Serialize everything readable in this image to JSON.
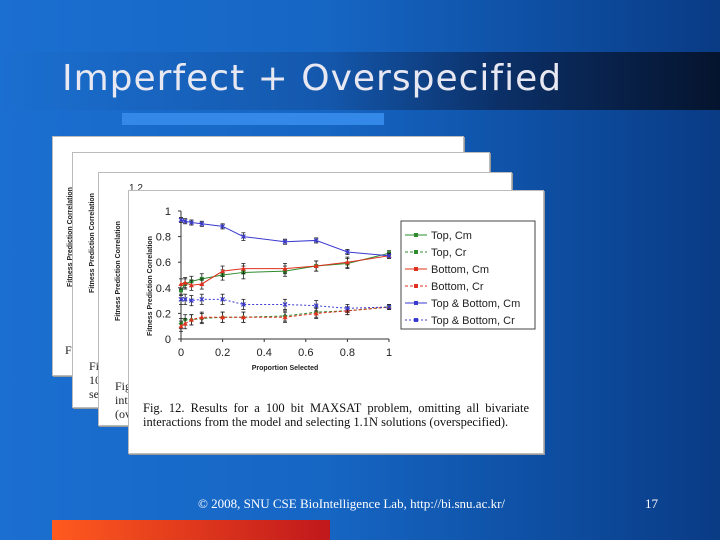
{
  "slide": {
    "title": "Imperfect + Overspecified",
    "footer": "© 2008, SNU CSE BioIntelligence Lab, http://bi.snu.ac.kr/",
    "page_number": "17"
  },
  "stack": {
    "ylabel": "Fitness Prediction Correlation",
    "frag_f1": "Fi",
    "frag_f2": "Fi",
    "frag_10": "10",
    "frag_se": "se",
    "frag_fig": "Fig",
    "frag_in": "int",
    "frag_ov": "(ov",
    "frag_12": "1.2"
  },
  "chart_data": {
    "type": "line",
    "ylabel": "Fitness Prediction Correlation",
    "xlabel": "Proportion Selected",
    "xlim": [
      0,
      1
    ],
    "ylim": [
      0,
      1
    ],
    "x_ticks": [
      "0",
      "0.2",
      "0.4",
      "0.6",
      "0.8",
      "1"
    ],
    "y_ticks": [
      "0",
      "0.2",
      "0.4",
      "0.6",
      "0.8",
      "1"
    ],
    "legend_position": "right",
    "series": [
      {
        "name": "Top, Cm",
        "color": "#2e8b2e",
        "dash": "",
        "marker": "square",
        "x": [
          0,
          0.02,
          0.05,
          0.1,
          0.2,
          0.3,
          0.5,
          0.65,
          0.8,
          1.0
        ],
        "y": [
          0.38,
          0.43,
          0.45,
          0.47,
          0.5,
          0.52,
          0.53,
          0.57,
          0.59,
          0.67
        ],
        "err": [
          0.04,
          0.04,
          0.04,
          0.04,
          0.04,
          0.05,
          0.04,
          0.04,
          0.04,
          0.02
        ]
      },
      {
        "name": "Top, Cr",
        "color": "#2e8b2e",
        "dash": "3,2",
        "marker": "diamond",
        "x": [
          0,
          0.02,
          0.05,
          0.1,
          0.2,
          0.3,
          0.5,
          0.65,
          0.8,
          1.0
        ],
        "y": [
          0.12,
          0.15,
          0.15,
          0.16,
          0.17,
          0.17,
          0.18,
          0.21,
          0.22,
          0.25
        ],
        "err": [
          0.04,
          0.04,
          0.04,
          0.04,
          0.04,
          0.04,
          0.04,
          0.04,
          0.03,
          0.02
        ]
      },
      {
        "name": "Bottom, Cm",
        "color": "#e0301e",
        "dash": "",
        "marker": "triangle",
        "x": [
          0,
          0.02,
          0.05,
          0.1,
          0.2,
          0.3,
          0.5,
          0.65,
          0.8,
          1.0
        ],
        "y": [
          0.43,
          0.44,
          0.42,
          0.43,
          0.53,
          0.55,
          0.55,
          0.57,
          0.6,
          0.65
        ],
        "err": [
          0.04,
          0.04,
          0.04,
          0.04,
          0.04,
          0.04,
          0.04,
          0.04,
          0.04,
          0.02
        ]
      },
      {
        "name": "Bottom, Cr",
        "color": "#e0301e",
        "dash": "3,2",
        "marker": "triangle",
        "x": [
          0,
          0.02,
          0.05,
          0.1,
          0.2,
          0.3,
          0.5,
          0.65,
          0.8,
          1.0
        ],
        "y": [
          0.1,
          0.12,
          0.15,
          0.17,
          0.17,
          0.17,
          0.17,
          0.2,
          0.22,
          0.25
        ],
        "err": [
          0.04,
          0.04,
          0.04,
          0.04,
          0.04,
          0.04,
          0.04,
          0.04,
          0.03,
          0.02
        ]
      },
      {
        "name": "Top & Bottom, Cm",
        "color": "#3a3ad0",
        "dash": "",
        "marker": "x",
        "x": [
          0,
          0.02,
          0.05,
          0.1,
          0.2,
          0.3,
          0.5,
          0.65,
          0.8,
          1.0
        ],
        "y": [
          0.93,
          0.92,
          0.91,
          0.9,
          0.88,
          0.8,
          0.76,
          0.77,
          0.68,
          0.65
        ],
        "err": [
          0.02,
          0.02,
          0.02,
          0.02,
          0.02,
          0.03,
          0.02,
          0.02,
          0.02,
          0.02
        ]
      },
      {
        "name": "Top & Bottom, Cr",
        "color": "#3a3ad0",
        "dash": "2,2",
        "marker": "x",
        "x": [
          0,
          0.02,
          0.05,
          0.1,
          0.2,
          0.3,
          0.5,
          0.65,
          0.8,
          1.0
        ],
        "y": [
          0.31,
          0.31,
          0.3,
          0.31,
          0.31,
          0.27,
          0.27,
          0.26,
          0.24,
          0.25
        ],
        "err": [
          0.04,
          0.04,
          0.04,
          0.04,
          0.04,
          0.04,
          0.04,
          0.04,
          0.03,
          0.02
        ]
      }
    ],
    "caption": "Fig. 12. Results for a 100 bit MAXSAT problem, omitting all bivariate interactions from the model and selecting 1.1N solutions (overspecified)."
  }
}
